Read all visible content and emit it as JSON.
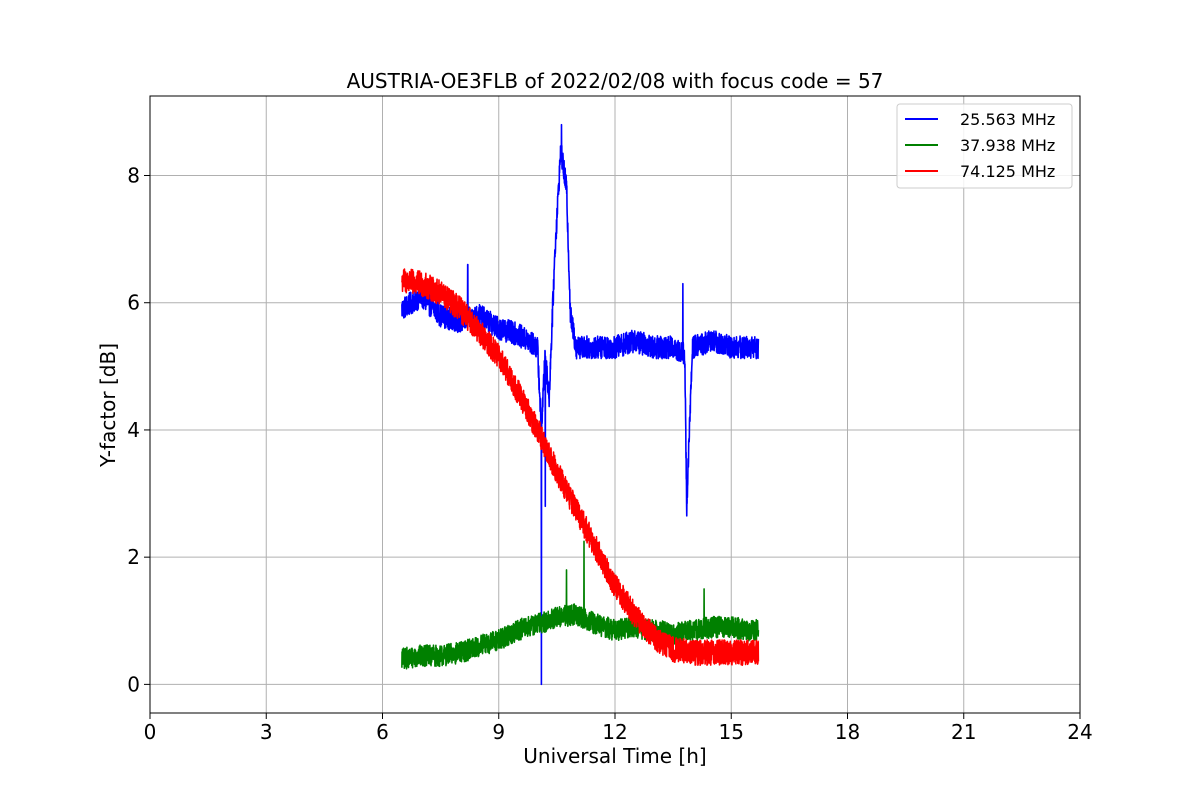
{
  "chart_data": {
    "type": "line",
    "title": "AUSTRIA-OE3FLB of 2022/02/08 with focus code = 57",
    "xlabel": "Universal Time [h]",
    "ylabel": "Y-factor [dB]",
    "xlim": [
      0,
      24
    ],
    "ylim": [
      -0.45,
      9.25
    ],
    "xticks": [
      0,
      3,
      6,
      9,
      12,
      15,
      18,
      21,
      24
    ],
    "yticks": [
      0,
      2,
      4,
      6,
      8
    ],
    "xtick_labels": [
      "0",
      "3",
      "6",
      "9",
      "12",
      "15",
      "18",
      "21",
      "24"
    ],
    "ytick_labels": [
      "0",
      "2",
      "4",
      "6",
      "8"
    ],
    "grid": true,
    "legend_position": "top-right",
    "series": [
      {
        "name": "25.563 MHz",
        "color": "#0000ff",
        "x": [
          6.5,
          7.0,
          7.5,
          8.0,
          8.5,
          9.0,
          9.5,
          10.0,
          10.1,
          10.2,
          10.3,
          10.45,
          10.6,
          10.75,
          10.85,
          11.0,
          11.5,
          12.0,
          12.5,
          13.0,
          13.5,
          13.8,
          13.85,
          14.0,
          14.5,
          15.0,
          15.5,
          15.7
        ],
        "y": [
          5.9,
          6.1,
          5.8,
          5.7,
          5.8,
          5.6,
          5.5,
          5.3,
          4.0,
          5.2,
          4.5,
          6.8,
          8.4,
          7.8,
          5.8,
          5.3,
          5.3,
          5.3,
          5.4,
          5.3,
          5.3,
          5.2,
          2.8,
          5.3,
          5.4,
          5.3,
          5.3,
          5.3
        ],
        "spikes": [
          {
            "x": 10.1,
            "y": 0.0
          },
          {
            "x": 10.2,
            "y": 2.8
          },
          {
            "x": 10.62,
            "y": 8.8
          },
          {
            "x": 13.85,
            "y": 2.65
          },
          {
            "x": 8.2,
            "y": 6.6
          },
          {
            "x": 13.75,
            "y": 6.3
          }
        ],
        "noise_amplitude": 0.18
      },
      {
        "name": "37.938 MHz",
        "color": "#008000",
        "x": [
          6.5,
          7.0,
          7.5,
          8.0,
          8.5,
          9.0,
          9.5,
          10.0,
          10.5,
          11.0,
          11.5,
          12.0,
          12.5,
          13.0,
          13.5,
          14.0,
          14.5,
          15.0,
          15.5,
          15.7
        ],
        "y": [
          0.4,
          0.45,
          0.45,
          0.5,
          0.6,
          0.7,
          0.85,
          0.95,
          1.05,
          1.1,
          0.95,
          0.85,
          0.9,
          0.85,
          0.8,
          0.85,
          0.9,
          0.9,
          0.85,
          0.85
        ],
        "spikes": [
          {
            "x": 11.2,
            "y": 2.25
          },
          {
            "x": 10.75,
            "y": 1.8
          },
          {
            "x": 14.3,
            "y": 1.5
          }
        ],
        "noise_amplitude": 0.17
      },
      {
        "name": "74.125 MHz",
        "color": "#ff0000",
        "x": [
          6.5,
          7.0,
          7.5,
          8.0,
          8.5,
          9.0,
          9.5,
          10.0,
          10.5,
          11.0,
          11.5,
          12.0,
          12.5,
          13.0,
          13.5,
          14.0,
          14.5,
          15.0,
          15.5,
          15.7
        ],
        "y": [
          6.35,
          6.3,
          6.15,
          5.9,
          5.55,
          5.15,
          4.6,
          4.0,
          3.35,
          2.75,
          2.15,
          1.55,
          1.1,
          0.75,
          0.55,
          0.5,
          0.5,
          0.5,
          0.5,
          0.5
        ],
        "spikes": [],
        "noise_amplitude": 0.2
      }
    ]
  }
}
